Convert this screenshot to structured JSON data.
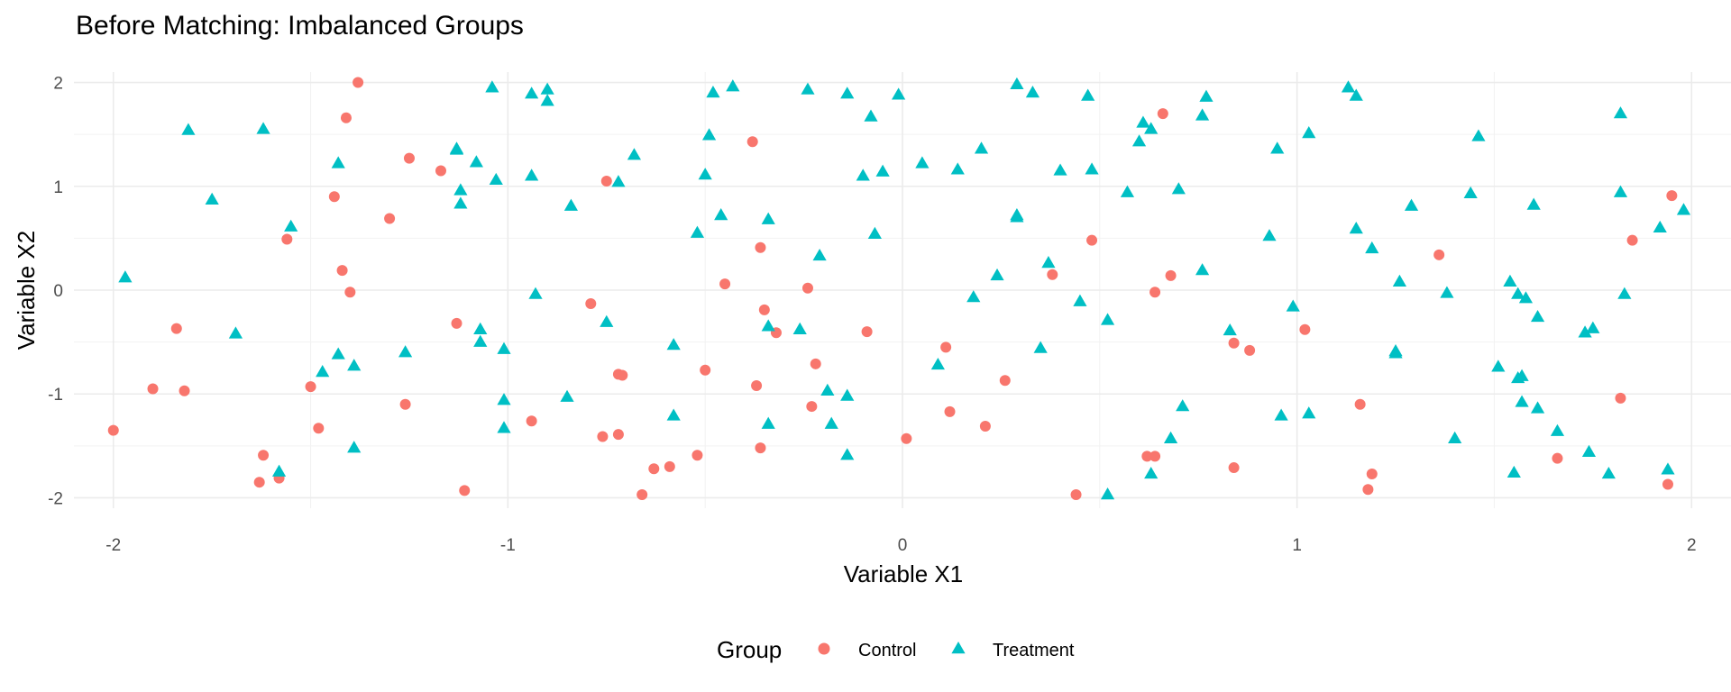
{
  "chart_data": {
    "type": "scatter",
    "title": "Before Matching: Imbalanced Groups",
    "xlabel": "Variable X1",
    "ylabel": "Variable X2",
    "xlim": [
      -2.1,
      2.1
    ],
    "ylim": [
      -2.1,
      2.1
    ],
    "x_ticks": [
      "-2",
      "-1",
      "0",
      "1",
      "2"
    ],
    "y_ticks": [
      "-2",
      "-1",
      "0",
      "1",
      "2"
    ],
    "grid": true,
    "legend": {
      "title": "Group",
      "position": "bottom"
    },
    "colors": {
      "Control": "#F8766D",
      "Treatment": "#00BFC4"
    },
    "series": [
      {
        "name": "Control",
        "marker": "circle",
        "points": [
          [
            -2.0,
            -1.35
          ],
          [
            -1.9,
            -0.95
          ],
          [
            -1.84,
            -0.37
          ],
          [
            -1.82,
            -0.97
          ],
          [
            -1.63,
            -1.85
          ],
          [
            -1.62,
            -1.59
          ],
          [
            -1.58,
            -1.81
          ],
          [
            -1.56,
            0.49
          ],
          [
            -1.5,
            -0.93
          ],
          [
            -1.48,
            -1.33
          ],
          [
            -1.44,
            0.9
          ],
          [
            -1.42,
            0.19
          ],
          [
            -1.41,
            1.66
          ],
          [
            -1.4,
            -0.02
          ],
          [
            -1.38,
            2.0
          ],
          [
            -1.3,
            0.69
          ],
          [
            -1.26,
            -1.1
          ],
          [
            -1.25,
            1.27
          ],
          [
            -1.17,
            1.15
          ],
          [
            -1.13,
            -0.32
          ],
          [
            -1.11,
            -1.93
          ],
          [
            -0.94,
            -1.26
          ],
          [
            -0.79,
            -0.13
          ],
          [
            -0.76,
            -1.41
          ],
          [
            -0.75,
            1.05
          ],
          [
            -0.72,
            -1.39
          ],
          [
            -0.72,
            -0.81
          ],
          [
            -0.71,
            -0.82
          ],
          [
            -0.66,
            -1.97
          ],
          [
            -0.63,
            -1.72
          ],
          [
            -0.59,
            -1.7
          ],
          [
            -0.52,
            -1.59
          ],
          [
            -0.5,
            -0.77
          ],
          [
            -0.45,
            0.06
          ],
          [
            -0.38,
            1.43
          ],
          [
            -0.37,
            -0.92
          ],
          [
            -0.36,
            0.41
          ],
          [
            -0.36,
            -1.52
          ],
          [
            -0.35,
            -0.19
          ],
          [
            -0.32,
            -0.41
          ],
          [
            -0.24,
            0.02
          ],
          [
            -0.23,
            -1.12
          ],
          [
            -0.22,
            -0.71
          ],
          [
            -0.09,
            -0.4
          ],
          [
            0.01,
            -1.43
          ],
          [
            0.11,
            -0.55
          ],
          [
            0.12,
            -1.17
          ],
          [
            0.21,
            -1.31
          ],
          [
            0.26,
            -0.87
          ],
          [
            0.38,
            0.15
          ],
          [
            0.44,
            -1.97
          ],
          [
            0.48,
            0.48
          ],
          [
            0.62,
            -1.6
          ],
          [
            0.64,
            -1.6
          ],
          [
            0.64,
            -0.02
          ],
          [
            0.66,
            1.7
          ],
          [
            0.68,
            0.14
          ],
          [
            0.84,
            -0.51
          ],
          [
            0.84,
            -1.71
          ],
          [
            0.88,
            -0.58
          ],
          [
            1.02,
            -0.38
          ],
          [
            1.16,
            -1.1
          ],
          [
            1.18,
            -1.92
          ],
          [
            1.19,
            -1.77
          ],
          [
            1.36,
            0.34
          ],
          [
            1.66,
            -1.62
          ],
          [
            1.82,
            -1.04
          ],
          [
            1.85,
            0.48
          ],
          [
            1.94,
            -1.87
          ],
          [
            1.95,
            0.91
          ]
        ]
      },
      {
        "name": "Treatment",
        "marker": "triangle",
        "points": [
          [
            -1.97,
            0.12
          ],
          [
            -1.81,
            1.54
          ],
          [
            -1.75,
            0.87
          ],
          [
            -1.69,
            -0.42
          ],
          [
            -1.62,
            1.55
          ],
          [
            -1.58,
            -1.75
          ],
          [
            -1.55,
            0.61
          ],
          [
            -1.47,
            -0.79
          ],
          [
            -1.43,
            1.22
          ],
          [
            -1.43,
            -0.62
          ],
          [
            -1.39,
            -0.73
          ],
          [
            -1.39,
            -1.52
          ],
          [
            -1.26,
            -0.6
          ],
          [
            -1.13,
            1.36
          ],
          [
            -1.12,
            0.83
          ],
          [
            -1.12,
            0.96
          ],
          [
            -1.13,
            1.35
          ],
          [
            -1.08,
            1.23
          ],
          [
            -1.07,
            -0.38
          ],
          [
            -1.07,
            -0.5
          ],
          [
            -1.04,
            1.95
          ],
          [
            -1.03,
            1.06
          ],
          [
            -1.01,
            -0.57
          ],
          [
            -1.01,
            -1.06
          ],
          [
            -1.01,
            -1.33
          ],
          [
            -0.94,
            1.89
          ],
          [
            -0.94,
            1.1
          ],
          [
            -0.93,
            -0.04
          ],
          [
            -0.9,
            1.93
          ],
          [
            -0.9,
            1.82
          ],
          [
            -0.84,
            0.81
          ],
          [
            -0.85,
            -1.03
          ],
          [
            -0.75,
            -0.31
          ],
          [
            -0.72,
            1.04
          ],
          [
            -0.68,
            1.3
          ],
          [
            -0.58,
            -0.53
          ],
          [
            -0.58,
            -1.21
          ],
          [
            -0.52,
            0.55
          ],
          [
            -0.5,
            1.11
          ],
          [
            -0.49,
            1.49
          ],
          [
            -0.48,
            1.9
          ],
          [
            -0.46,
            0.72
          ],
          [
            -0.43,
            1.96
          ],
          [
            -0.34,
            0.68
          ],
          [
            -0.34,
            -0.35
          ],
          [
            -0.34,
            -1.29
          ],
          [
            -0.26,
            -0.38
          ],
          [
            -0.24,
            1.93
          ],
          [
            -0.21,
            0.33
          ],
          [
            -0.19,
            -0.97
          ],
          [
            -0.18,
            -1.29
          ],
          [
            -0.14,
            1.89
          ],
          [
            -0.14,
            -1.02
          ],
          [
            -0.14,
            -1.59
          ],
          [
            -0.1,
            1.1
          ],
          [
            -0.08,
            1.67
          ],
          [
            -0.07,
            0.54
          ],
          [
            -0.05,
            1.14
          ],
          [
            -0.01,
            1.88
          ],
          [
            0.05,
            1.22
          ],
          [
            0.09,
            -0.72
          ],
          [
            0.14,
            1.16
          ],
          [
            0.18,
            -0.07
          ],
          [
            0.2,
            1.36
          ],
          [
            0.24,
            0.14
          ],
          [
            0.29,
            0.7
          ],
          [
            0.29,
            0.72
          ],
          [
            0.29,
            1.98
          ],
          [
            0.33,
            1.9
          ],
          [
            0.35,
            -0.56
          ],
          [
            0.37,
            0.26
          ],
          [
            0.4,
            1.15
          ],
          [
            0.45,
            -0.11
          ],
          [
            0.47,
            1.87
          ],
          [
            0.48,
            1.16
          ],
          [
            0.52,
            -0.29
          ],
          [
            0.52,
            -1.97
          ],
          [
            0.57,
            0.94
          ],
          [
            0.6,
            1.43
          ],
          [
            0.61,
            1.61
          ],
          [
            0.63,
            1.55
          ],
          [
            0.63,
            -1.77
          ],
          [
            0.68,
            -1.43
          ],
          [
            0.7,
            0.97
          ],
          [
            0.71,
            -1.12
          ],
          [
            0.76,
            1.68
          ],
          [
            0.76,
            0.19
          ],
          [
            0.77,
            1.86
          ],
          [
            0.83,
            -0.39
          ],
          [
            0.93,
            0.52
          ],
          [
            0.95,
            1.36
          ],
          [
            0.96,
            -1.21
          ],
          [
            0.99,
            -0.16
          ],
          [
            1.03,
            1.51
          ],
          [
            1.03,
            -1.19
          ],
          [
            1.13,
            1.95
          ],
          [
            1.15,
            1.87
          ],
          [
            1.15,
            0.59
          ],
          [
            1.19,
            0.4
          ],
          [
            1.25,
            -0.61
          ],
          [
            1.25,
            -0.59
          ],
          [
            1.26,
            0.08
          ],
          [
            1.29,
            0.81
          ],
          [
            1.38,
            -0.03
          ],
          [
            1.4,
            -1.43
          ],
          [
            1.44,
            0.93
          ],
          [
            1.46,
            1.48
          ],
          [
            1.51,
            -0.74
          ],
          [
            1.54,
            0.08
          ],
          [
            1.55,
            -1.76
          ],
          [
            1.56,
            -0.04
          ],
          [
            1.56,
            -0.85
          ],
          [
            1.57,
            -1.08
          ],
          [
            1.57,
            -0.83
          ],
          [
            1.58,
            -0.08
          ],
          [
            1.6,
            0.82
          ],
          [
            1.61,
            -0.26
          ],
          [
            1.61,
            -1.14
          ],
          [
            1.66,
            -1.36
          ],
          [
            1.73,
            -0.41
          ],
          [
            1.74,
            -1.56
          ],
          [
            1.75,
            -0.37
          ],
          [
            1.79,
            -1.77
          ],
          [
            1.82,
            1.7
          ],
          [
            1.82,
            0.94
          ],
          [
            1.83,
            -0.04
          ],
          [
            1.92,
            0.6
          ],
          [
            1.94,
            -1.73
          ],
          [
            1.98,
            0.77
          ]
        ]
      }
    ]
  }
}
